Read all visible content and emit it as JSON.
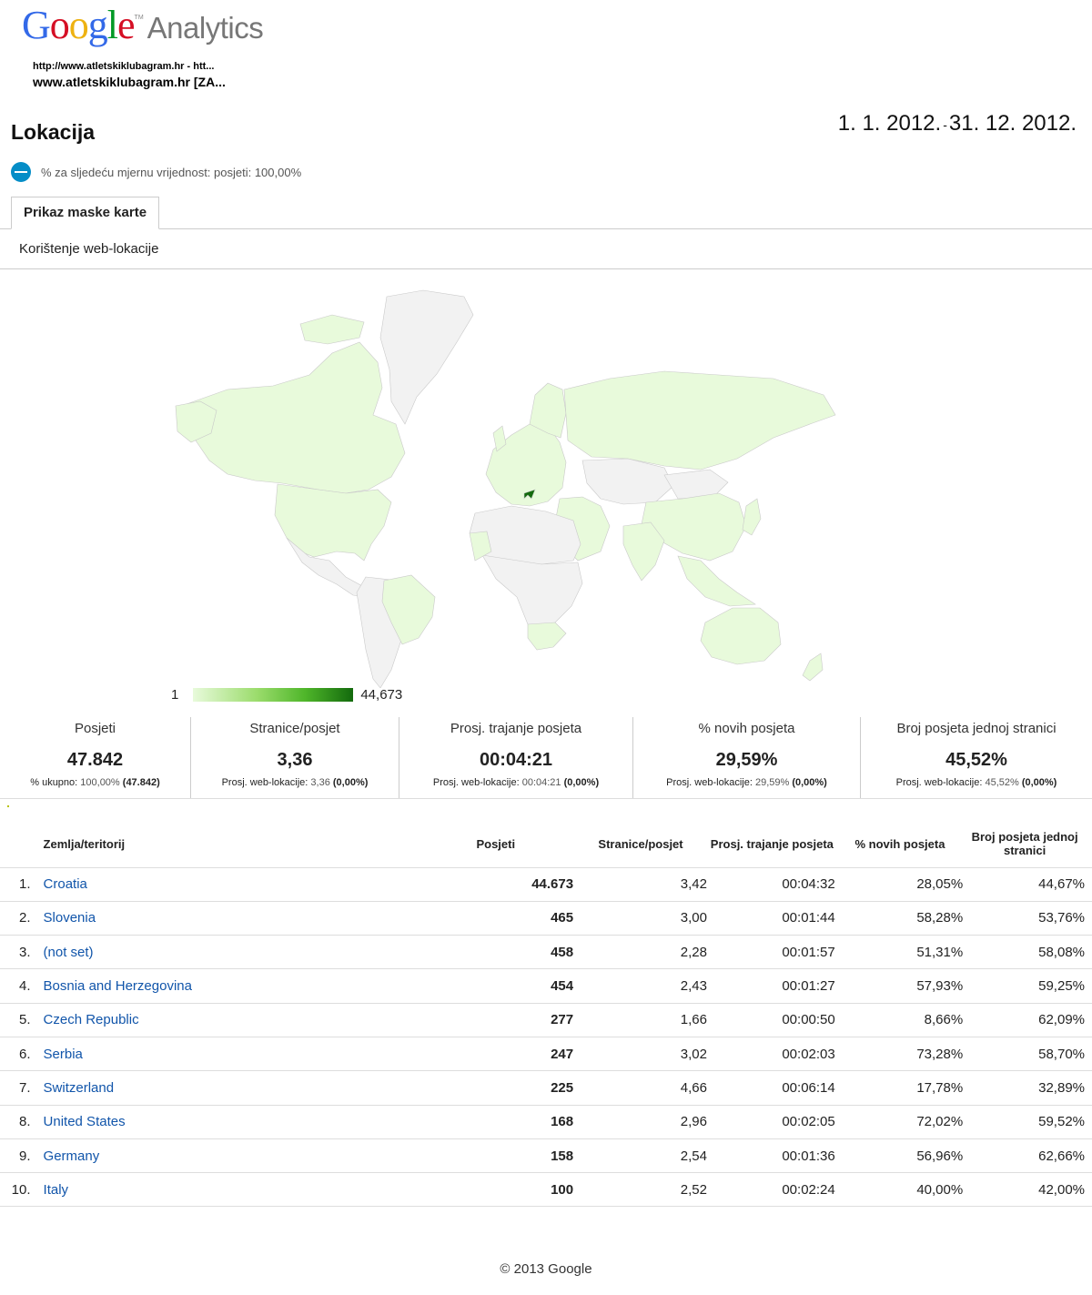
{
  "header": {
    "logo_google": "Google",
    "logo_product": "Analytics",
    "logo_tm": "TM",
    "property_url": "http://www.atletskiklubagram.hr - htt...",
    "property_name": "www.atletskiklubagram.hr [ZA...",
    "page_title": "Lokacija",
    "date_start": "1. 1. 2012.",
    "date_sep": "-",
    "date_end": "31. 12. 2012.",
    "metric_pct_text": "% za sljedeću mjernu vrijednost: posjeti: 100,00%"
  },
  "tabs": {
    "active": "Prikaz maske karte",
    "subtab": "Korištenje web-lokacije"
  },
  "map": {
    "legend_min": "1",
    "legend_max": "44,673",
    "colors": {
      "none": "#f2f2f2",
      "low": "#e8fadb",
      "high": "#136a0d",
      "border": "#bbbbbb"
    }
  },
  "scorecards": [
    {
      "label": "Posjeti",
      "value": "47.842",
      "sub_prefix": "% ukupno: ",
      "sub_value": "100,00%",
      "sub_bold": "(47.842)"
    },
    {
      "label": "Stranice/posjet",
      "value": "3,36",
      "sub_prefix": "Prosj. web-lokacije: ",
      "sub_value": "3,36",
      "sub_bold": "(0,00%)"
    },
    {
      "label": "Prosj. trajanje posjeta",
      "value": "00:04:21",
      "sub_prefix": "Prosj. web-lokacije: ",
      "sub_value": "00:04:21",
      "sub_bold": "(0,00%)"
    },
    {
      "label": "% novih posjeta",
      "value": "29,59%",
      "sub_prefix": "Prosj. web-lokacije: ",
      "sub_value": "29,59%",
      "sub_bold": "(0,00%)"
    },
    {
      "label": "Broj posjeta jednoj stranici",
      "value": "45,52%",
      "sub_prefix": "Prosj. web-lokacije: ",
      "sub_value": "45,52%",
      "sub_bold": "(0,00%)"
    }
  ],
  "table": {
    "headers": {
      "country": "Zemlja/teritorij",
      "visits": "Posjeti",
      "pages_per_visit": "Stranice/posjet",
      "avg_duration": "Prosj. trajanje posjeta",
      "new_visits": "% novih posjeta",
      "bounce": "Broj posjeta jednoj stranici"
    },
    "rows": [
      {
        "idx": "1.",
        "country": "Croatia",
        "visits": "44.673",
        "pps": "3,42",
        "dur": "00:04:32",
        "new": "28,05%",
        "bounce": "44,67%"
      },
      {
        "idx": "2.",
        "country": "Slovenia",
        "visits": "465",
        "pps": "3,00",
        "dur": "00:01:44",
        "new": "58,28%",
        "bounce": "53,76%"
      },
      {
        "idx": "3.",
        "country": "(not set)",
        "visits": "458",
        "pps": "2,28",
        "dur": "00:01:57",
        "new": "51,31%",
        "bounce": "58,08%"
      },
      {
        "idx": "4.",
        "country": "Bosnia and Herzegovina",
        "visits": "454",
        "pps": "2,43",
        "dur": "00:01:27",
        "new": "57,93%",
        "bounce": "59,25%"
      },
      {
        "idx": "5.",
        "country": "Czech Republic",
        "visits": "277",
        "pps": "1,66",
        "dur": "00:00:50",
        "new": "8,66%",
        "bounce": "62,09%"
      },
      {
        "idx": "6.",
        "country": "Serbia",
        "visits": "247",
        "pps": "3,02",
        "dur": "00:02:03",
        "new": "73,28%",
        "bounce": "58,70%"
      },
      {
        "idx": "7.",
        "country": "Switzerland",
        "visits": "225",
        "pps": "4,66",
        "dur": "00:06:14",
        "new": "17,78%",
        "bounce": "32,89%"
      },
      {
        "idx": "8.",
        "country": "United States",
        "visits": "168",
        "pps": "2,96",
        "dur": "00:02:05",
        "new": "72,02%",
        "bounce": "59,52%"
      },
      {
        "idx": "9.",
        "country": "Germany",
        "visits": "158",
        "pps": "2,54",
        "dur": "00:01:36",
        "new": "56,96%",
        "bounce": "62,66%"
      },
      {
        "idx": "10.",
        "country": "Italy",
        "visits": "100",
        "pps": "2,52",
        "dur": "00:02:24",
        "new": "40,00%",
        "bounce": "42,00%"
      }
    ]
  },
  "footer": "© 2013 Google"
}
